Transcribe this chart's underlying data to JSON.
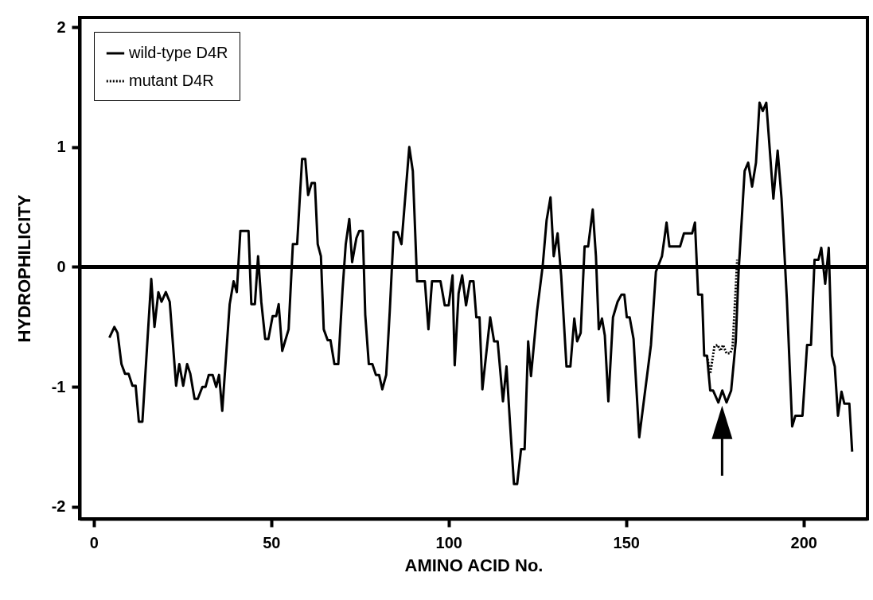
{
  "chart_data": {
    "type": "line",
    "xlabel": "AMINO ACID No.",
    "ylabel": "HYDROPHILICITY",
    "xlim": [
      -4,
      218
    ],
    "ylim": [
      -2.1,
      2.08
    ],
    "xticks": [
      0,
      50,
      100,
      150,
      200
    ],
    "yticks": [
      -2,
      -1,
      0,
      1,
      2
    ],
    "grid": false,
    "legend": "top left",
    "marker": "none",
    "ref_lines": [
      {
        "axis": "y",
        "value": 0,
        "color": "#000000"
      }
    ],
    "series": [
      {
        "name": "wild-type D4R",
        "color": "#000000",
        "line_style": "solid",
        "x": [
          4.4,
          5.8,
          6.7,
          7.8,
          8.8,
          9.8,
          10.9,
          11.8,
          12.7,
          13.7,
          16.2,
          17.1,
          18.2,
          19.1,
          20.3,
          21.4,
          23.2,
          24.1,
          25.2,
          26.3,
          27.2,
          28.4,
          29.3,
          30.6,
          31.5,
          32.4,
          33.5,
          34.5,
          35.3,
          36.2,
          38.3,
          39.4,
          40.3,
          41.3,
          43.6,
          44.4,
          45.4,
          46.3,
          47.2,
          48.3,
          49.2,
          50.4,
          51.4,
          52.1,
          53.1,
          54.9,
          56.1,
          57.3,
          58.7,
          59.6,
          60.4,
          61.4,
          62.3,
          63.1,
          64.0,
          64.8,
          65.9,
          66.7,
          67.8,
          68.9,
          70.1,
          71.0,
          72.0,
          72.8,
          74.0,
          74.8,
          75.8,
          76.5,
          77.5,
          78.5,
          79.5,
          80.4,
          81.3,
          82.4,
          83.4,
          84.5,
          85.6,
          86.7,
          88.9,
          89.9,
          91.1,
          92.2,
          93.3,
          94.3,
          95.3,
          97.7,
          98.9,
          100.0,
          101.1,
          101.7,
          102.8,
          103.8,
          104.9,
          106.0,
          107.0,
          107.8,
          108.7,
          109.5,
          111.7,
          112.8,
          113.8,
          115.3,
          116.3,
          117.3,
          118.4,
          119.3,
          120.4,
          121.4,
          122.4,
          123.2,
          124.9,
          126.5,
          127.6,
          128.7,
          129.6,
          130.7,
          131.7,
          133.2,
          134.3,
          135.4,
          136.2,
          137.2,
          138.3,
          139.3,
          140.6,
          141.5,
          142.3,
          143.2,
          144.0,
          145.0,
          146.3,
          147.6,
          148.7,
          149.5,
          150.2,
          151.0,
          152.1,
          153.7,
          157.0,
          158.4,
          160.1,
          161.4,
          162.2,
          165.2,
          166.3,
          168.6,
          169.4,
          170.3,
          171.4,
          172.0,
          172.8,
          173.7,
          174.5,
          176.0,
          177.1,
          178.3,
          179.6,
          180.9,
          181.7,
          183.4,
          184.4,
          185.5,
          186.6,
          187.6,
          188.5,
          189.5,
          191.5,
          192.7,
          193.8,
          195.3,
          196.8,
          197.7,
          199.7,
          201.0,
          202.1,
          203.1,
          204.2,
          205.0,
          206.1,
          207.1,
          208.0,
          208.8,
          209.7,
          210.7,
          211.5,
          212.9,
          213.7
        ],
        "values": [
          -0.59,
          -0.5,
          -0.55,
          -0.81,
          -0.89,
          -0.89,
          -0.99,
          -0.99,
          -1.29,
          -1.29,
          -0.1,
          -0.5,
          -0.21,
          -0.29,
          -0.21,
          -0.29,
          -0.99,
          -0.81,
          -0.99,
          -0.81,
          -0.89,
          -1.1,
          -1.1,
          -1.0,
          -1.0,
          -0.9,
          -0.9,
          -1.0,
          -0.9,
          -1.2,
          -0.31,
          -0.12,
          -0.21,
          0.3,
          0.3,
          -0.31,
          -0.31,
          0.09,
          -0.29,
          -0.6,
          -0.6,
          -0.41,
          -0.41,
          -0.31,
          -0.7,
          -0.52,
          0.19,
          0.19,
          0.9,
          0.9,
          0.6,
          0.7,
          0.7,
          0.19,
          0.09,
          -0.52,
          -0.61,
          -0.61,
          -0.81,
          -0.81,
          -0.19,
          0.19,
          0.4,
          0.04,
          0.24,
          0.3,
          0.3,
          -0.4,
          -0.81,
          -0.81,
          -0.9,
          -0.9,
          -1.02,
          -0.9,
          -0.37,
          0.29,
          0.29,
          0.19,
          1.0,
          0.8,
          -0.12,
          -0.12,
          -0.12,
          -0.52,
          -0.12,
          -0.12,
          -0.32,
          -0.32,
          -0.07,
          -0.82,
          -0.22,
          -0.07,
          -0.32,
          -0.12,
          -0.12,
          -0.42,
          -0.42,
          -1.02,
          -0.42,
          -0.62,
          -0.62,
          -1.12,
          -0.83,
          -1.31,
          -1.81,
          -1.81,
          -1.52,
          -1.52,
          -0.62,
          -0.91,
          -0.37,
          0.01,
          0.39,
          0.58,
          0.09,
          0.28,
          -0.07,
          -0.83,
          -0.83,
          -0.43,
          -0.62,
          -0.55,
          0.17,
          0.17,
          0.48,
          0.09,
          -0.52,
          -0.43,
          -0.57,
          -1.12,
          -0.42,
          -0.29,
          -0.23,
          -0.23,
          -0.42,
          -0.42,
          -0.6,
          -1.42,
          -0.65,
          -0.04,
          0.09,
          0.37,
          0.17,
          0.17,
          0.28,
          0.28,
          0.37,
          -0.23,
          -0.23,
          -0.74,
          -0.74,
          -1.03,
          -1.03,
          -1.13,
          -1.03,
          -1.13,
          -1.03,
          -0.62,
          -0.04,
          0.8,
          0.87,
          0.67,
          0.87,
          1.37,
          1.3,
          1.37,
          0.57,
          0.97,
          0.57,
          -0.27,
          -1.33,
          -1.24,
          -1.24,
          -0.65,
          -0.65,
          0.06,
          0.06,
          0.16,
          -0.14,
          0.16,
          -0.74,
          -0.83,
          -1.24,
          -1.04,
          -1.14,
          -1.14,
          -1.54
        ]
      },
      {
        "name": "mutant D4R",
        "color": "#000000",
        "line_style": "dotted",
        "x": [
          172.8,
          173.7,
          174.9,
          175.8,
          176.6,
          177.3,
          178.3,
          179.3,
          180.0,
          180.9,
          181.3
        ],
        "values": [
          -0.74,
          -0.89,
          -0.66,
          -0.65,
          -0.7,
          -0.65,
          -0.72,
          -0.72,
          -0.67,
          -0.17,
          0.06
        ]
      }
    ]
  }
}
